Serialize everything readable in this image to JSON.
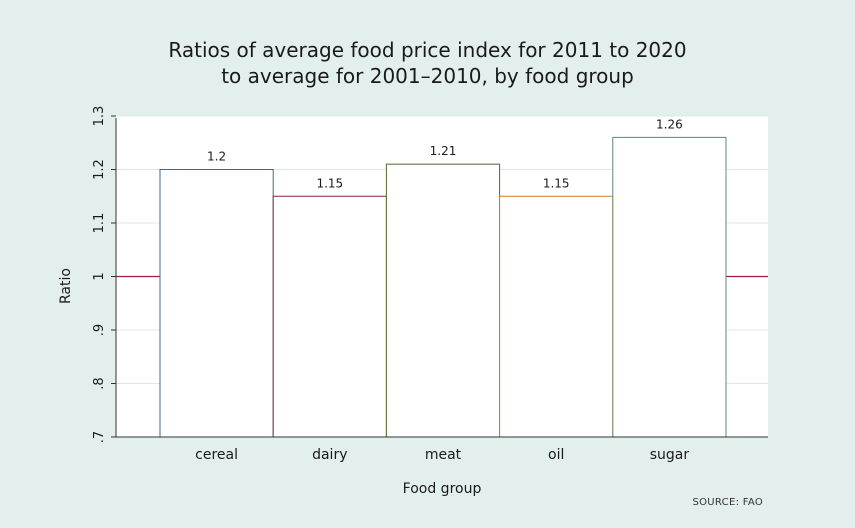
{
  "chart_data": {
    "type": "bar",
    "title": "Ratios of average food price index for 2011 to 2020",
    "subtitle": "to average for 2001–2010, by food group",
    "xlabel": "Food group",
    "ylabel": "Ratio",
    "categories": [
      "cereal",
      "dairy",
      "meat",
      "oil",
      "sugar"
    ],
    "values": [
      1.2,
      1.15,
      1.21,
      1.15,
      1.26
    ],
    "value_labels": [
      "1.2",
      "1.15",
      "1.21",
      "1.15",
      "1.26"
    ],
    "ylim": [
      0.7,
      1.3
    ],
    "yticks": [
      0.7,
      0.8,
      0.9,
      1.0,
      1.1,
      1.2,
      1.3
    ],
    "ytick_labels": [
      ".7",
      ".8",
      ".9",
      "1",
      "1.1",
      "1.2",
      "1.3"
    ],
    "reference_line": 1.0,
    "grid": true,
    "bar_colors": [
      "#3d6a8a",
      "#7a2a3a",
      "#4f6b2a",
      "#d97a1e",
      "#5e8a78"
    ],
    "reference_line_color": "#9c1c3c",
    "source": "SOURCE: FAO"
  }
}
